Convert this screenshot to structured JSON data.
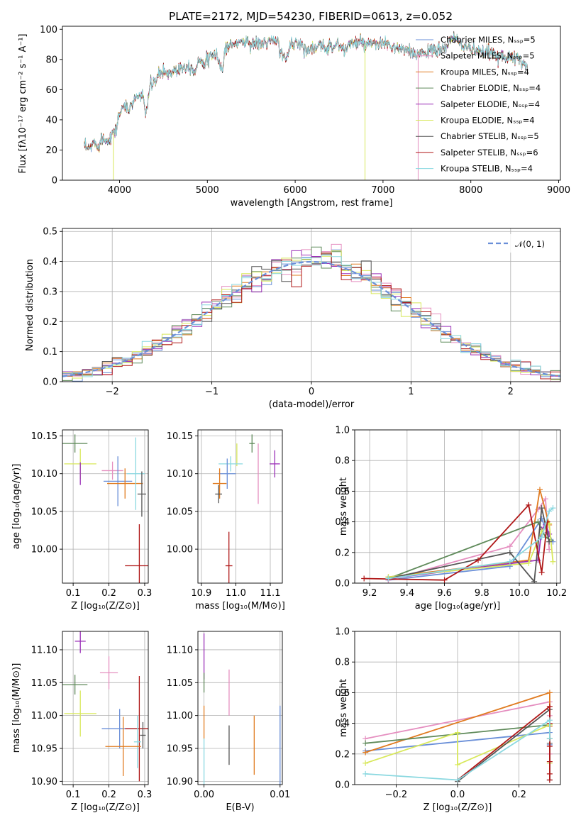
{
  "figure": {
    "title": "PLATE=2172, MJD=54230, FIBERID=0613, z=0.052"
  },
  "colors": {
    "Chabrier MILES": "#6a8fd8",
    "Salpeter MILES": "#e58fc0",
    "Kroupa MILES": "#e07b20",
    "Chabrier ELODIE": "#5f8a5a",
    "Salpeter ELODIE": "#9b30b8",
    "Kroupa ELODIE": "#d8e85a",
    "Chabrier STELIB": "#555555",
    "Salpeter STELIB": "#b01818",
    "Kroupa STELIB": "#8ad8e0",
    "gauss": "#6a8fd8"
  },
  "chart_data": [
    {
      "id": "spectrum",
      "type": "line",
      "title": "PLATE=2172, MJD=54230, FIBERID=0613, z=0.052",
      "xlabel": "wavelength [Angstrom, rest frame]",
      "ylabel": "Flux [fλ10⁻¹⁷ erg cm⁻² s⁻¹ A⁻¹]",
      "xlim": [
        3350,
        9020
      ],
      "ylim": [
        0,
        102
      ],
      "xticks": [
        4000,
        5000,
        6000,
        7000,
        8000,
        9000
      ],
      "yticks": [
        0,
        20,
        40,
        60,
        80,
        100
      ],
      "legend_position": "right",
      "legend": [
        {
          "text": "Chabrier MILES, Nₛₛₚ=5",
          "color": "#6a8fd8"
        },
        {
          "text": "Salpeter MILES, Nₛₛₚ=5",
          "color": "#e58fc0"
        },
        {
          "text": "Kroupa MILES, Nₛₛₚ=4",
          "color": "#e07b20"
        },
        {
          "text": "Chabrier ELODIE, Nₛₛₚ=4",
          "color": "#5f8a5a"
        },
        {
          "text": "Salpeter ELODIE, Nₛₛₚ=4",
          "color": "#9b30b8"
        },
        {
          "text": "Kroupa ELODIE, Nₛₛₚ=4",
          "color": "#d8e85a"
        },
        {
          "text": "Chabrier STELIB, Nₛₛₚ=5",
          "color": "#555555"
        },
        {
          "text": "Salpeter STELIB, Nₛₛₚ=6",
          "color": "#b01818"
        },
        {
          "text": "Kroupa STELIB, Nₛₛₚ=4",
          "color": "#8ad8e0"
        }
      ],
      "continuum": [
        [
          3600,
          22
        ],
        [
          3650,
          20
        ],
        [
          3700,
          25
        ],
        [
          3750,
          23
        ],
        [
          3800,
          28
        ],
        [
          3850,
          26
        ],
        [
          3900,
          30
        ],
        [
          3950,
          32
        ],
        [
          4000,
          44
        ],
        [
          4050,
          50
        ],
        [
          4100,
          45
        ],
        [
          4150,
          52
        ],
        [
          4200,
          55
        ],
        [
          4250,
          57
        ],
        [
          4300,
          45
        ],
        [
          4350,
          62
        ],
        [
          4400,
          65
        ],
        [
          4450,
          70
        ],
        [
          4500,
          72
        ],
        [
          4550,
          71
        ],
        [
          4600,
          72
        ],
        [
          4700,
          75
        ],
        [
          4800,
          76
        ],
        [
          4862,
          72
        ],
        [
          4900,
          80
        ],
        [
          5000,
          79
        ],
        [
          5100,
          84
        ],
        [
          5175,
          72
        ],
        [
          5200,
          88
        ],
        [
          5300,
          90
        ],
        [
          5400,
          92
        ],
        [
          5500,
          91
        ],
        [
          5600,
          90
        ],
        [
          5700,
          92
        ],
        [
          5800,
          91
        ],
        [
          5893,
          78
        ],
        [
          5950,
          91
        ],
        [
          6000,
          92
        ],
        [
          6100,
          88
        ],
        [
          6200,
          87
        ],
        [
          6300,
          88
        ],
        [
          6400,
          89
        ],
        [
          6500,
          90
        ],
        [
          6563,
          85
        ],
        [
          6600,
          90
        ],
        [
          6700,
          91
        ],
        [
          6800,
          90
        ],
        [
          6900,
          89
        ],
        [
          7000,
          91
        ],
        [
          7100,
          88
        ],
        [
          7200,
          87
        ],
        [
          7300,
          85
        ],
        [
          7350,
          82
        ],
        [
          7400,
          84
        ],
        [
          7500,
          86
        ],
        [
          7600,
          85
        ],
        [
          7700,
          88
        ],
        [
          7800,
          94
        ],
        [
          7900,
          90
        ],
        [
          8000,
          87
        ],
        [
          8100,
          84
        ],
        [
          8200,
          85
        ],
        [
          8300,
          83
        ],
        [
          8400,
          82
        ],
        [
          8500,
          80
        ],
        [
          8600,
          78
        ],
        [
          8650,
          75
        ]
      ],
      "drops": [
        {
          "series": "Kroupa ELODIE",
          "x": 3930
        },
        {
          "series": "Kroupa ELODIE",
          "x": 6795
        },
        {
          "series": "Salpeter MILES",
          "x": 7400
        }
      ]
    },
    {
      "id": "residuals",
      "type": "histogram",
      "xlabel": "(data-model)/error",
      "ylabel": "Normed distribution",
      "xlim": [
        -2.5,
        2.5
      ],
      "ylim": [
        0,
        0.51
      ],
      "xticks": [
        -2,
        -1,
        0,
        1,
        2
      ],
      "yticks": [
        0.0,
        0.1,
        0.2,
        0.3,
        0.4,
        0.5
      ],
      "legend": {
        "text": "𝒩(0, 1)",
        "position": "top-right"
      },
      "bin_width": 0.1
    },
    {
      "id": "age-vs-Z",
      "type": "errorbar",
      "xlabel": "Z [log₁₀(Z/Z⊙)]",
      "ylabel": "age  [log₁₀(age/yr)]",
      "xlim": [
        0.07,
        0.31
      ],
      "ylim": [
        9.955,
        10.158
      ],
      "xticks": [
        0.1,
        0.2,
        0.3
      ],
      "yticks": [
        10.0,
        10.05,
        10.1,
        10.15
      ],
      "points": [
        {
          "series": "Chabrier ELODIE",
          "x": 0.105,
          "xerr": 0.035,
          "y": 10.14,
          "yerr": 0.012
        },
        {
          "series": "Kroupa ELODIE",
          "x": 0.12,
          "xerr": 0.045,
          "y": 10.113,
          "yerr": 0.02
        },
        {
          "series": "Salpeter ELODIE",
          "x": 0.12,
          "xerr": 0.0,
          "y": 10.1,
          "yerr": 0.015
        },
        {
          "series": "Salpeter MILES",
          "x": 0.21,
          "xerr": 0.03,
          "y": 10.104,
          "yerr": 0.012
        },
        {
          "series": "Chabrier MILES",
          "x": 0.225,
          "xerr": 0.04,
          "y": 10.09,
          "yerr": 0.033
        },
        {
          "series": "Kroupa MILES",
          "x": 0.245,
          "xerr": 0.05,
          "y": 10.087,
          "yerr": 0.02
        },
        {
          "series": "Kroupa STELIB",
          "x": 0.275,
          "xerr": 0.025,
          "y": 10.1,
          "yerr": 0.048
        },
        {
          "series": "Chabrier STELIB",
          "x": 0.292,
          "xerr": 0.012,
          "y": 10.073,
          "yerr": 0.03
        },
        {
          "series": "Salpeter STELIB",
          "x": 0.285,
          "xerr": 0.04,
          "y": 9.978,
          "yerr": 0.055
        }
      ]
    },
    {
      "id": "age-vs-mass",
      "type": "errorbar",
      "xlabel": "mass [log₁₀(M/M⊙)]",
      "xlim": [
        10.89,
        11.135
      ],
      "ylim": [
        9.955,
        10.158
      ],
      "xticks": [
        10.9,
        11.0,
        11.1
      ],
      "yticks": [
        10.0,
        10.05,
        10.1,
        10.15
      ],
      "points": [
        {
          "series": "Chabrier ELODIE",
          "x": 11.047,
          "xerr": 0.008,
          "y": 10.14,
          "yerr": 0.012
        },
        {
          "series": "Kroupa ELODIE",
          "x": 11.003,
          "xerr": 0.0,
          "y": 10.125,
          "yerr": 0.015
        },
        {
          "series": "Salpeter ELODIE",
          "x": 11.113,
          "xerr": 0.015,
          "y": 10.113,
          "yerr": 0.018
        },
        {
          "series": "Kroupa STELIB",
          "x": 10.985,
          "xerr": 0.035,
          "y": 10.113,
          "yerr": 0.01
        },
        {
          "series": "Salpeter MILES",
          "x": 11.065,
          "xerr": 0.0,
          "y": 10.1,
          "yerr": 0.04
        },
        {
          "series": "Chabrier MILES",
          "x": 10.975,
          "xerr": 0.025,
          "y": 10.1,
          "yerr": 0.02
        },
        {
          "series": "Kroupa MILES",
          "x": 10.953,
          "xerr": 0.02,
          "y": 10.087,
          "yerr": 0.02
        },
        {
          "series": "Chabrier STELIB",
          "x": 10.95,
          "xerr": 0.01,
          "y": 10.073,
          "yerr": 0.012
        },
        {
          "series": "Salpeter STELIB",
          "x": 10.98,
          "xerr": 0.01,
          "y": 9.978,
          "yerr": 0.045
        }
      ]
    },
    {
      "id": "weight-vs-age",
      "type": "line",
      "xlabel": "age  [log₁₀(age/yr)]",
      "ylabel": "mass weight",
      "xlim": [
        9.12,
        10.22
      ],
      "ylim": [
        0,
        1.0
      ],
      "xticks": [
        9.2,
        9.4,
        9.6,
        9.8,
        10.0,
        10.2
      ],
      "yticks": [
        0.0,
        0.2,
        0.4,
        0.6,
        0.8,
        1.0
      ],
      "series": [
        {
          "name": "Chabrier MILES",
          "x": [
            9.3,
            9.95,
            10.12,
            10.15,
            10.18
          ],
          "y": [
            0.02,
            0.11,
            0.42,
            0.33,
            0.27
          ]
        },
        {
          "name": "Salpeter MILES",
          "x": [
            9.3,
            9.95,
            10.1,
            10.14,
            10.16
          ],
          "y": [
            0.02,
            0.24,
            0.48,
            0.55,
            0.22
          ]
        },
        {
          "name": "Kroupa MILES",
          "x": [
            9.3,
            10.05,
            10.11,
            10.16
          ],
          "y": [
            0.04,
            0.15,
            0.61,
            0.38
          ]
        },
        {
          "name": "Chabrier ELODIE",
          "x": [
            9.3,
            10.1,
            10.14,
            10.17
          ],
          "y": [
            0.03,
            0.4,
            0.3,
            0.28
          ]
        },
        {
          "name": "Salpeter ELODIE",
          "x": [
            9.3,
            10.1,
            10.12,
            10.14,
            10.16
          ],
          "y": [
            0.03,
            0.15,
            0.35,
            0.38,
            0.32
          ]
        },
        {
          "name": "Kroupa ELODIE",
          "x": [
            9.3,
            10.05,
            10.12,
            10.16,
            10.18
          ],
          "y": [
            0.04,
            0.13,
            0.34,
            0.39,
            0.14
          ]
        },
        {
          "name": "Chabrier STELIB",
          "x": [
            9.3,
            9.95,
            10.08,
            10.12,
            10.16
          ],
          "y": [
            0.03,
            0.2,
            0.01,
            0.49,
            0.27
          ]
        },
        {
          "name": "Salpeter STELIB",
          "x": [
            9.17,
            9.6,
            9.78,
            10.05,
            10.12,
            10.15
          ],
          "y": [
            0.03,
            0.02,
            0.15,
            0.51,
            0.07,
            0.4
          ]
        },
        {
          "name": "Kroupa STELIB",
          "x": [
            9.3,
            9.95,
            10.12,
            10.16,
            10.18
          ],
          "y": [
            0.03,
            0.14,
            0.3,
            0.47,
            0.49
          ]
        }
      ]
    },
    {
      "id": "mass-vs-Z",
      "type": "errorbar",
      "xlabel": "Z [log₁₀(Z/Z⊙)]",
      "ylabel": "mass [log₁₀(M/M⊙)]",
      "xlim": [
        0.07,
        0.31
      ],
      "ylim": [
        10.895,
        11.128
      ],
      "xticks": [
        0.1,
        0.2,
        0.3
      ],
      "yticks": [
        10.9,
        10.95,
        11.0,
        11.05,
        11.1
      ],
      "points": [
        {
          "series": "Salpeter ELODIE",
          "x": 0.12,
          "xerr": 0.015,
          "y": 11.113,
          "yerr": 0.018
        },
        {
          "series": "Salpeter MILES",
          "x": 0.2,
          "xerr": 0.025,
          "y": 11.065,
          "yerr": 0.025
        },
        {
          "series": "Chabrier ELODIE",
          "x": 0.105,
          "xerr": 0.035,
          "y": 11.047,
          "yerr": 0.015
        },
        {
          "series": "Kroupa ELODIE",
          "x": 0.12,
          "xerr": 0.045,
          "y": 11.003,
          "yerr": 0.035
        },
        {
          "series": "Chabrier MILES",
          "x": 0.23,
          "xerr": 0.05,
          "y": 10.98,
          "yerr": 0.03
        },
        {
          "series": "Salpeter STELIB",
          "x": 0.285,
          "xerr": 0.04,
          "y": 10.98,
          "yerr": 0.08
        },
        {
          "series": "Kroupa STELIB",
          "x": 0.28,
          "xerr": 0.01,
          "y": 10.96,
          "yerr": 0.04
        },
        {
          "series": "Kroupa MILES",
          "x": 0.24,
          "xerr": 0.05,
          "y": 10.953,
          "yerr": 0.045
        },
        {
          "series": "Chabrier STELIB",
          "x": 0.295,
          "xerr": 0.008,
          "y": 10.97,
          "yerr": 0.02
        }
      ]
    },
    {
      "id": "mass-vs-ebv",
      "type": "errorbar",
      "xlabel": "E(B-V)",
      "xlim": [
        -0.0008,
        0.0103
      ],
      "ylim": [
        10.895,
        11.128
      ],
      "xticks": [
        0.0,
        0.01
      ],
      "yticks": [
        10.9,
        10.95,
        11.0,
        11.05,
        11.1
      ],
      "points": [
        {
          "series": "Salpeter ELODIE",
          "x": 0.0,
          "xerr": 0.0,
          "y": 11.09,
          "yerr": 0.035
        },
        {
          "series": "Chabrier ELODIE",
          "x": 0.0,
          "xerr": 0.0,
          "y": 11.05,
          "yerr": 0.015
        },
        {
          "series": "Kroupa MILES",
          "x": 0.0,
          "xerr": 0.0,
          "y": 10.99,
          "yerr": 0.025
        },
        {
          "series": "Kroupa STELIB",
          "x": 0.0,
          "xerr": 0.0,
          "y": 10.93,
          "yerr": 0.035
        },
        {
          "series": "Salpeter MILES",
          "x": 0.0033,
          "xerr": 0.0,
          "y": 11.035,
          "yerr": 0.035
        },
        {
          "series": "Chabrier STELIB",
          "x": 0.0033,
          "xerr": 0.0,
          "y": 10.955,
          "yerr": 0.03
        },
        {
          "series": "Kroupa MILES",
          "x": 0.0066,
          "xerr": 0.0,
          "y": 10.955,
          "yerr": 0.045
        },
        {
          "series": "Chabrier MILES",
          "x": 0.01,
          "xerr": 0.0,
          "y": 10.955,
          "yerr": 0.06
        }
      ]
    },
    {
      "id": "weight-vs-Z",
      "type": "line",
      "xlabel": "Z [log₁₀(Z/Z⊙)]",
      "ylabel": "mass weight",
      "xlim": [
        -0.335,
        0.335
      ],
      "ylim": [
        0,
        1.0
      ],
      "xticks": [
        -0.2,
        0.0,
        0.2
      ],
      "yticks": [
        0.0,
        0.2,
        0.4,
        0.6,
        0.8,
        1.0
      ],
      "series": [
        {
          "name": "Chabrier MILES",
          "x": [
            -0.3,
            0.3,
            0.3
          ],
          "y": [
            0.22,
            0.34,
            0.26
          ]
        },
        {
          "name": "Salpeter MILES",
          "x": [
            -0.3,
            0.3,
            0.3,
            0.3
          ],
          "y": [
            0.3,
            0.54,
            0.45,
            0.2
          ]
        },
        {
          "name": "Kroupa MILES",
          "x": [
            -0.3,
            0.3,
            0.3
          ],
          "y": [
            0.21,
            0.6,
            0.38
          ]
        },
        {
          "name": "Chabrier ELODIE",
          "x": [
            -0.3,
            0.3,
            0.3
          ],
          "y": [
            0.27,
            0.39,
            0.3
          ]
        },
        {
          "name": "Kroupa ELODIE",
          "x": [
            -0.3,
            0.0,
            0.0,
            0.3,
            0.3
          ],
          "y": [
            0.14,
            0.34,
            0.13,
            0.39,
            0.14
          ]
        },
        {
          "name": "Chabrier STELIB",
          "x": [
            0.0,
            0.3,
            0.3,
            0.3
          ],
          "y": [
            0.02,
            0.49,
            0.27,
            0.03
          ]
        },
        {
          "name": "Salpeter STELIB",
          "x": [
            0.0,
            0.3,
            0.3,
            0.3,
            0.3,
            0.3,
            0.3
          ],
          "y": [
            0.03,
            0.51,
            0.4,
            0.25,
            0.15,
            0.07,
            0.03
          ]
        },
        {
          "name": "Kroupa STELIB",
          "x": [
            -0.3,
            0.0,
            0.3,
            0.3
          ],
          "y": [
            0.07,
            0.03,
            0.42,
            0.3
          ]
        }
      ]
    }
  ]
}
